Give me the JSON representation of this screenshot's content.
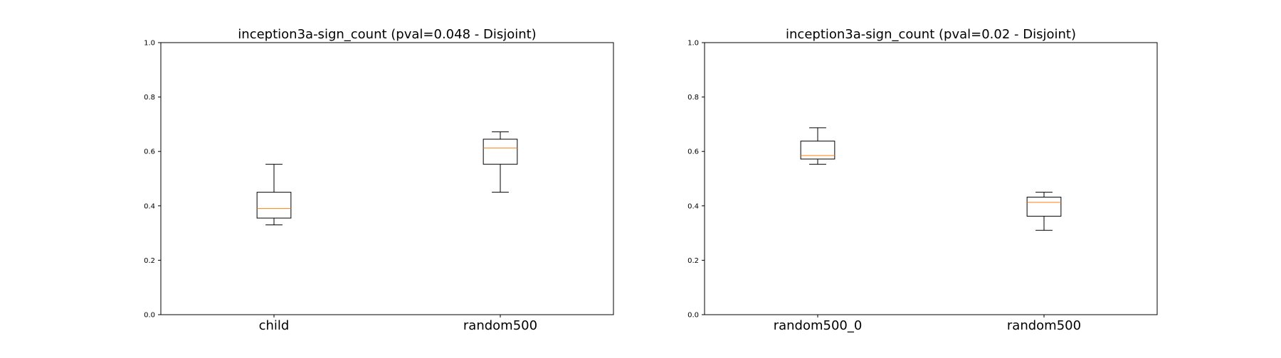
{
  "chart_data": [
    {
      "type": "box",
      "title": "inception3a-sign_count (pval=0.048 - Disjoint)",
      "xlabel": "",
      "ylabel": "",
      "ylim": [
        0.0,
        1.0
      ],
      "yticks": [
        "0.0",
        "0.2",
        "0.4",
        "0.6",
        "0.8",
        "1.0"
      ],
      "grid": false,
      "categories": [
        "child",
        "random500"
      ],
      "boxes": [
        {
          "min": 0.33,
          "q1": 0.355,
          "median": 0.39,
          "q3": 0.45,
          "max": 0.553
        },
        {
          "min": 0.45,
          "q1": 0.553,
          "median": 0.613,
          "q3": 0.645,
          "max": 0.672
        }
      ],
      "colors": {
        "box": "#000000",
        "median": "#ff7f0e"
      }
    },
    {
      "type": "box",
      "title": "inception3a-sign_count (pval=0.02 - Disjoint)",
      "xlabel": "",
      "ylabel": "",
      "ylim": [
        0.0,
        1.0
      ],
      "yticks": [
        "0.0",
        "0.2",
        "0.4",
        "0.6",
        "0.8",
        "1.0"
      ],
      "grid": false,
      "categories": [
        "random500_0",
        "random500"
      ],
      "boxes": [
        {
          "min": 0.553,
          "q1": 0.572,
          "median": 0.585,
          "q3": 0.638,
          "max": 0.687
        },
        {
          "min": 0.31,
          "q1": 0.362,
          "median": 0.413,
          "q3": 0.432,
          "max": 0.45
        }
      ],
      "colors": {
        "box": "#000000",
        "median": "#ff7f0e"
      }
    }
  ]
}
